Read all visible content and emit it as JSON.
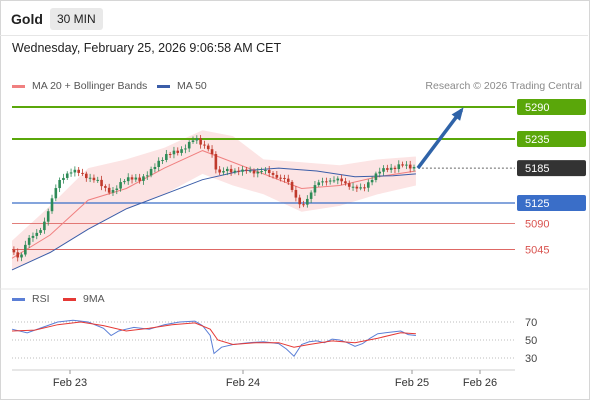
{
  "header": {
    "instrument": "Gold",
    "timeframe": "30 MIN"
  },
  "date_time": "Wednesday, February 25, 2026 9:06:58 AM CET",
  "legend": {
    "ma20_label": "MA 20 + Bollinger Bands",
    "ma50_label": "MA 50",
    "copyright": "Research © 2026 Trading Central",
    "rsi_label": "RSI",
    "rsi_ma_label": "9MA"
  },
  "colors": {
    "resistance": "#5aa70a",
    "current": "#333333",
    "support": "#3a6ec8",
    "target": "#d9534f",
    "candle_up": "#2e8b57",
    "candle_down": "#c0392b",
    "ma20": "#f08080",
    "ma50": "#3b5da8",
    "bands": "#fce4e4",
    "arrow": "#2f63a8",
    "rsi": "#5b7fd6",
    "rsi_ma": "#e53935"
  },
  "chart_data": [
    {
      "type": "candlestick",
      "title": "Gold 30 MIN",
      "x_ticks": [
        "Feb 23",
        "Feb 24",
        "Feb 25",
        "Feb 26"
      ],
      "levels": [
        {
          "value": 5290,
          "label": "5290",
          "kind": "resistance"
        },
        {
          "value": 5235,
          "label": "5235",
          "kind": "resistance"
        },
        {
          "value": 5185,
          "label": "5185",
          "kind": "current"
        },
        {
          "value": 5125,
          "label": "5125",
          "kind": "support"
        },
        {
          "value": 5090,
          "label": "5090",
          "kind": "target"
        },
        {
          "value": 5045,
          "label": "5045",
          "kind": "target"
        }
      ],
      "close_path": [
        [
          0,
          5045
        ],
        [
          2,
          5030
        ],
        [
          4,
          5060
        ],
        [
          6,
          5070
        ],
        [
          8,
          5085
        ],
        [
          10,
          5120
        ],
        [
          12,
          5160
        ],
        [
          14,
          5175
        ],
        [
          16,
          5180
        ],
        [
          18,
          5175
        ],
        [
          20,
          5170
        ],
        [
          22,
          5165
        ],
        [
          24,
          5150
        ],
        [
          26,
          5145
        ],
        [
          28,
          5155
        ],
        [
          30,
          5165
        ],
        [
          32,
          5170
        ],
        [
          34,
          5165
        ],
        [
          36,
          5175
        ],
        [
          38,
          5195
        ],
        [
          40,
          5205
        ],
        [
          42,
          5210
        ],
        [
          44,
          5215
        ],
        [
          46,
          5225
        ],
        [
          48,
          5235
        ],
        [
          50,
          5225
        ],
        [
          52,
          5220
        ],
        [
          53,
          5195
        ],
        [
          54,
          5170
        ],
        [
          56,
          5185
        ],
        [
          58,
          5180
        ],
        [
          60,
          5178
        ],
        [
          62,
          5182
        ],
        [
          64,
          5178
        ],
        [
          66,
          5180
        ],
        [
          68,
          5175
        ],
        [
          70,
          5170
        ],
        [
          72,
          5165
        ],
        [
          74,
          5140
        ],
        [
          76,
          5120
        ],
        [
          78,
          5135
        ],
        [
          80,
          5160
        ],
        [
          82,
          5165
        ],
        [
          84,
          5162
        ],
        [
          86,
          5165
        ],
        [
          88,
          5158
        ],
        [
          90,
          5150
        ],
        [
          92,
          5148
        ],
        [
          94,
          5165
        ],
        [
          96,
          5178
        ],
        [
          98,
          5182
        ],
        [
          100,
          5186
        ],
        [
          102,
          5192
        ],
        [
          104,
          5185
        ],
        [
          106,
          5186
        ]
      ],
      "ma20_path": [
        [
          0,
          5030
        ],
        [
          10,
          5070
        ],
        [
          20,
          5130
        ],
        [
          30,
          5150
        ],
        [
          40,
          5185
        ],
        [
          50,
          5215
        ],
        [
          56,
          5200
        ],
        [
          66,
          5175
        ],
        [
          76,
          5150
        ],
        [
          86,
          5155
        ],
        [
          96,
          5170
        ],
        [
          106,
          5180
        ]
      ],
      "ma50_path": [
        [
          0,
          5010
        ],
        [
          10,
          5040
        ],
        [
          20,
          5080
        ],
        [
          30,
          5115
        ],
        [
          40,
          5140
        ],
        [
          50,
          5165
        ],
        [
          60,
          5180
        ],
        [
          70,
          5185
        ],
        [
          80,
          5180
        ],
        [
          90,
          5170
        ],
        [
          100,
          5172
        ],
        [
          106,
          5175
        ]
      ],
      "bollinger_upper": [
        [
          0,
          5060
        ],
        [
          10,
          5120
        ],
        [
          20,
          5185
        ],
        [
          30,
          5200
        ],
        [
          40,
          5220
        ],
        [
          50,
          5250
        ],
        [
          58,
          5240
        ],
        [
          66,
          5200
        ],
        [
          76,
          5195
        ],
        [
          86,
          5190
        ],
        [
          96,
          5200
        ],
        [
          106,
          5205
        ]
      ],
      "bollinger_lower": [
        [
          0,
          5010
        ],
        [
          10,
          5040
        ],
        [
          20,
          5080
        ],
        [
          30,
          5115
        ],
        [
          40,
          5140
        ],
        [
          50,
          5175
        ],
        [
          58,
          5155
        ],
        [
          66,
          5140
        ],
        [
          76,
          5110
        ],
        [
          86,
          5120
        ],
        [
          96,
          5140
        ],
        [
          106,
          5155
        ]
      ],
      "forecast_arrow": {
        "from": [
          106,
          5185
        ],
        "to": [
          118,
          5285
        ]
      },
      "ylim": [
        5010,
        5300
      ],
      "xlim": [
        0,
        132
      ]
    },
    {
      "type": "line",
      "title": "RSI",
      "y_ticks": [
        70,
        50,
        30
      ],
      "ylim": [
        20,
        80
      ],
      "series": [
        {
          "name": "RSI",
          "values": [
            [
              0,
              62
            ],
            [
              4,
              58
            ],
            [
              8,
              64
            ],
            [
              12,
              70
            ],
            [
              16,
              72
            ],
            [
              20,
              70
            ],
            [
              24,
              63
            ],
            [
              26,
              55
            ],
            [
              28,
              60
            ],
            [
              32,
              64
            ],
            [
              36,
              62
            ],
            [
              40,
              67
            ],
            [
              44,
              70
            ],
            [
              48,
              71
            ],
            [
              50,
              66
            ],
            [
              52,
              55
            ],
            [
              53,
              35
            ],
            [
              55,
              42
            ],
            [
              58,
              45
            ],
            [
              62,
              47
            ],
            [
              66,
              48
            ],
            [
              70,
              46
            ],
            [
              72,
              40
            ],
            [
              74,
              32
            ],
            [
              76,
              45
            ],
            [
              78,
              48
            ],
            [
              80,
              49
            ],
            [
              82,
              47
            ],
            [
              84,
              51
            ],
            [
              86,
              50
            ],
            [
              88,
              47
            ],
            [
              90,
              43
            ],
            [
              92,
              46
            ],
            [
              94,
              52
            ],
            [
              96,
              57
            ],
            [
              98,
              58
            ],
            [
              100,
              59
            ],
            [
              102,
              60
            ],
            [
              104,
              56
            ],
            [
              106,
              55
            ]
          ]
        },
        {
          "name": "9MA",
          "values": [
            [
              0,
              60
            ],
            [
              6,
              61
            ],
            [
              12,
              67
            ],
            [
              18,
              70
            ],
            [
              24,
              66
            ],
            [
              30,
              60
            ],
            [
              36,
              63
            ],
            [
              42,
              67
            ],
            [
              48,
              69
            ],
            [
              52,
              62
            ],
            [
              54,
              50
            ],
            [
              58,
              45
            ],
            [
              64,
              47
            ],
            [
              70,
              47
            ],
            [
              74,
              42
            ],
            [
              78,
              45
            ],
            [
              84,
              49
            ],
            [
              90,
              47
            ],
            [
              96,
              52
            ],
            [
              102,
              58
            ],
            [
              106,
              57
            ]
          ]
        }
      ]
    }
  ]
}
